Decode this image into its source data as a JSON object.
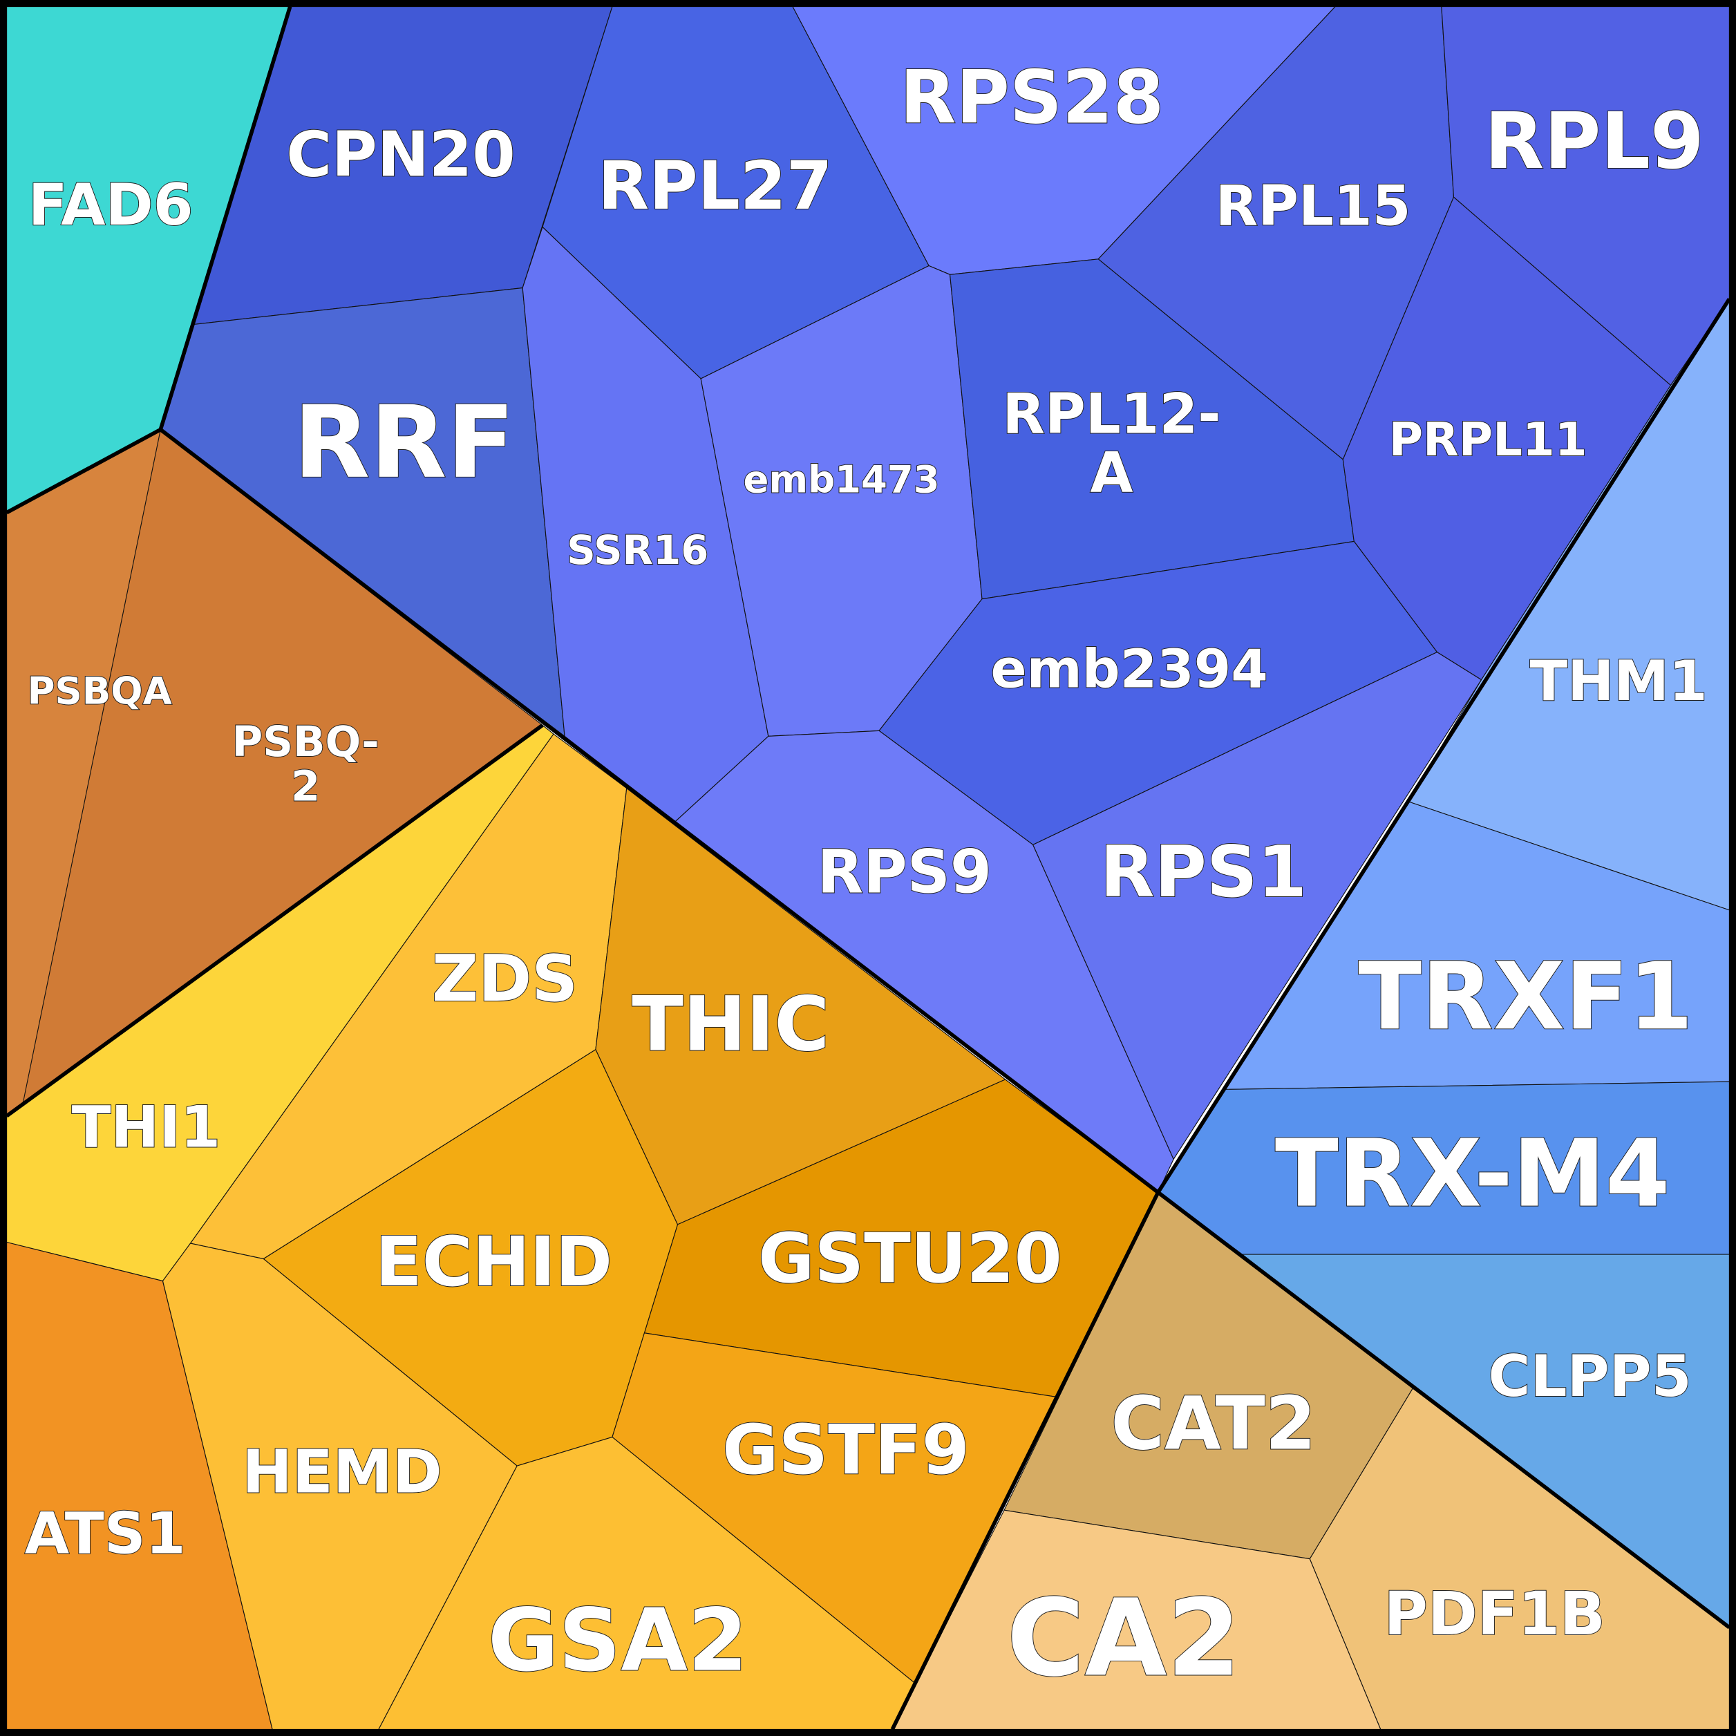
{
  "cells": [
    {
      "label": "FAD6"
    },
    {
      "label": "CPN20"
    },
    {
      "label": "RRF"
    },
    {
      "label": "RPL27"
    },
    {
      "label": "RPS28"
    },
    {
      "label": "RPL15"
    },
    {
      "label": "RPL9"
    },
    {
      "label": "SSR16"
    },
    {
      "label": "emb1473"
    },
    {
      "label_lines": [
        "RPL12-",
        "A"
      ]
    },
    {
      "label": "PRPL11"
    },
    {
      "label": "emb2394"
    },
    {
      "label": "RPS9"
    },
    {
      "label": "RPS1"
    },
    {
      "label": "THM1"
    },
    {
      "label": "TRXF1"
    },
    {
      "label": "TRX-M4"
    },
    {
      "label": "CLPP5"
    },
    {
      "label": "PDF1B"
    },
    {
      "label": "CAT2"
    },
    {
      "label": "CA2"
    },
    {
      "label": "PSBQA"
    },
    {
      "label_lines": [
        "PSBQ-",
        "2"
      ]
    },
    {
      "label": "THI1"
    },
    {
      "label": "ZDS"
    },
    {
      "label": "THIC"
    },
    {
      "label": "GSTU20"
    },
    {
      "label": "ECHID"
    },
    {
      "label": "GSTF9"
    },
    {
      "label": "ATS1"
    },
    {
      "label": "HEMD"
    },
    {
      "label": "GSA2"
    }
  ]
}
